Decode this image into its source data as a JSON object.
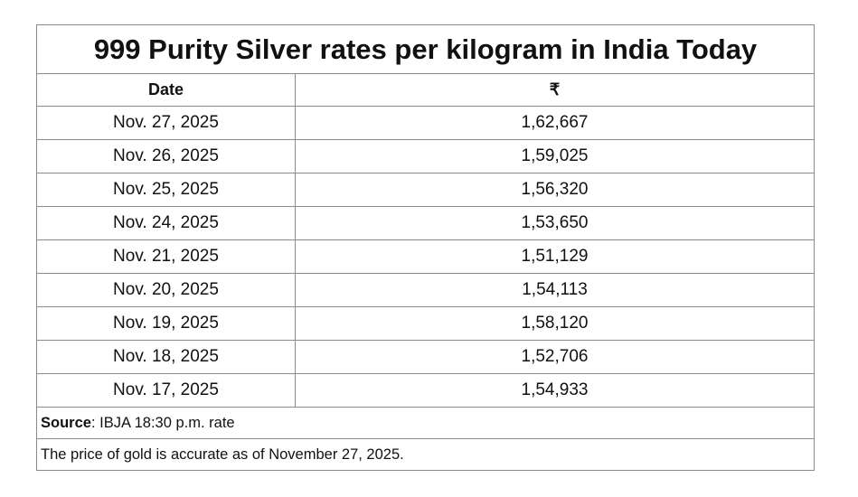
{
  "table": {
    "title": "999 Purity Silver rates per kilogram in India Today",
    "headers": {
      "date": "Date",
      "price": "₹"
    },
    "rows": [
      {
        "date": "Nov. 27, 2025",
        "price": "1,62,667"
      },
      {
        "date": "Nov. 26, 2025",
        "price": "1,59,025"
      },
      {
        "date": "Nov. 25, 2025",
        "price": "1,56,320"
      },
      {
        "date": "Nov. 24, 2025",
        "price": "1,53,650"
      },
      {
        "date": "Nov. 21, 2025",
        "price": "1,51,129"
      },
      {
        "date": "Nov. 20, 2025",
        "price": "1,54,113"
      },
      {
        "date": "Nov. 19, 2025",
        "price": "1,58,120"
      },
      {
        "date": "Nov. 18, 2025",
        "price": "1,52,706"
      },
      {
        "date": "Nov. 17, 2025",
        "price": "1,54,933"
      }
    ],
    "source_label": "Source",
    "source_text": ": IBJA 18:30 p.m. rate",
    "note": "The price of gold is accurate as of November 27, 2025."
  }
}
